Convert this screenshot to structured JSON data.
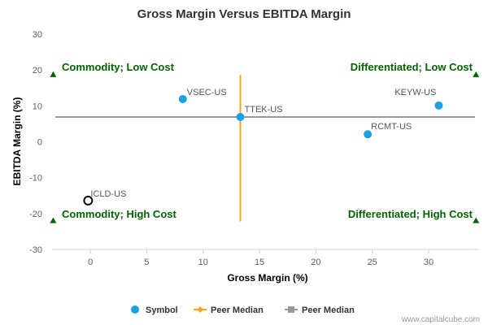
{
  "chart_data": {
    "type": "scatter",
    "title": "Gross Margin Versus EBITDA Margin",
    "xlabel": "Gross Margin (%)",
    "ylabel": "EBITDA Margin (%)",
    "xlim": [
      -3.4,
      34.4
    ],
    "ylim": [
      -30,
      30
    ],
    "x_ticks": [
      0,
      5,
      10,
      15,
      20,
      25,
      30
    ],
    "y_ticks": [
      30,
      20,
      10,
      0,
      -10,
      -20,
      -30
    ],
    "grid": false,
    "legend_position": "bottom",
    "points": [
      {
        "label": "VSEC-US",
        "x": 8.2,
        "y": 11.9,
        "style": "filled"
      },
      {
        "label": "TTEK-US",
        "x": 13.3,
        "y": 6.9,
        "style": "filled"
      },
      {
        "label": "KEYW-US",
        "x": 30.9,
        "y": 10.1,
        "style": "filled"
      },
      {
        "label": "RCMT-US",
        "x": 24.6,
        "y": 2.1,
        "style": "filled"
      },
      {
        "label": "ICLD-US",
        "x": -0.2,
        "y": -16.4,
        "style": "open"
      }
    ],
    "peer_median_x": 13.3,
    "peer_median_y": 6.9,
    "quadrants": {
      "top_left": "Commodity; Low Cost",
      "top_right": "Differentiated; Low Cost",
      "bottom_left": "Commodity; High Cost",
      "bottom_right": "Differentiated; High Cost"
    },
    "legend": [
      {
        "label": "Symbol",
        "marker": "circle",
        "color": "#1ba1e2"
      },
      {
        "label": "Peer Median",
        "marker": "diamond",
        "color": "#f5a623"
      },
      {
        "label": "Peer Median",
        "marker": "square",
        "color": "#999999"
      }
    ],
    "colors": {
      "point": "#1ba1e2",
      "vertical_median": "#f5a623",
      "horizontal_median": "#999999",
      "quadrant_text": "#006400",
      "triangle": "#006400"
    }
  },
  "credit": "www.capitalcube.com"
}
